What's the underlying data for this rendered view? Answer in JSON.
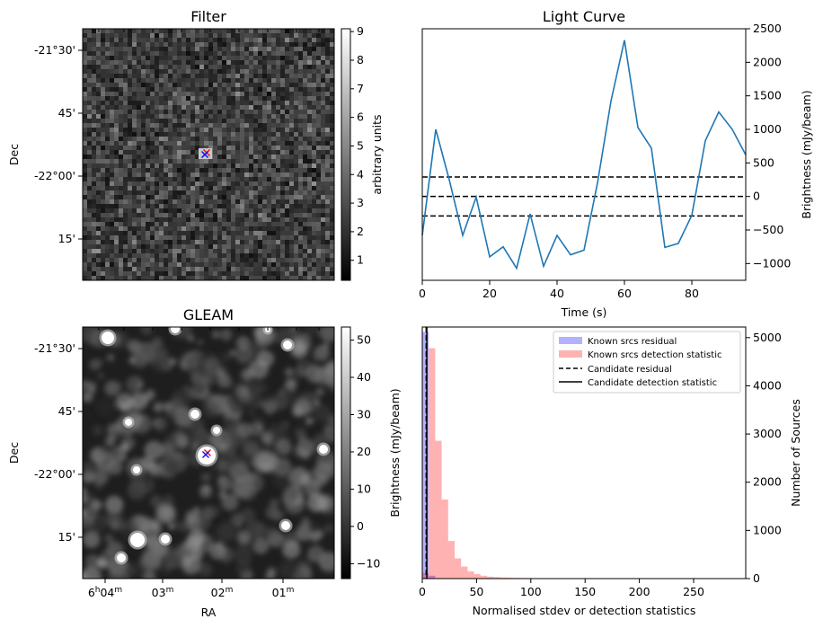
{
  "chart_data": [
    {
      "id": "filter",
      "type": "heatmap",
      "title": "Filter",
      "ylabel": "Dec",
      "dec_ticks": [
        "-21°30'",
        "45'",
        "-22°00'",
        "15'"
      ],
      "colorbar": {
        "label": "arbitrary units",
        "range": [
          0.3,
          9.1
        ],
        "ticks": [
          "1",
          "2",
          "3",
          "4",
          "5",
          "6",
          "7",
          "8",
          "9"
        ],
        "colormap": "gray"
      },
      "markers": [
        {
          "symbol": "x",
          "color": "#ff0000"
        },
        {
          "symbol": "x",
          "color": "#0000ff"
        }
      ]
    },
    {
      "id": "light-curve",
      "type": "line",
      "title": "Light Curve",
      "xlabel": "Time (s)",
      "ylabel": "Brightness (mJy/beam)",
      "xlim": [
        0,
        96
      ],
      "ylim": [
        -1250,
        2500
      ],
      "x_ticks": [
        "0",
        "20",
        "40",
        "60",
        "80"
      ],
      "y_ticks": [
        "−1000",
        "−500",
        "0",
        "500",
        "1000",
        "1500",
        "2000",
        "2500"
      ],
      "line_color": "#1f77b4",
      "x": [
        0,
        4,
        8,
        12,
        16,
        20,
        24,
        28,
        32,
        36,
        40,
        44,
        48,
        52,
        56,
        60,
        64,
        68,
        72,
        76,
        80,
        84,
        88,
        92,
        96
      ],
      "y": [
        -580,
        1000,
        250,
        -580,
        -10,
        -900,
        -750,
        -1070,
        -260,
        -1040,
        -580,
        -870,
        -800,
        200,
        1420,
        2330,
        1030,
        720,
        -760,
        -700,
        -280,
        830,
        1260,
        1000,
        620
      ],
      "hlines": [
        {
          "y": 290,
          "style": "dashed",
          "color": "#000000"
        },
        {
          "y": 0,
          "style": "dashed",
          "color": "#000000"
        },
        {
          "y": -290,
          "style": "dashed",
          "color": "#000000"
        }
      ]
    },
    {
      "id": "gleam",
      "type": "heatmap",
      "title": "GLEAM",
      "xlabel": "RA",
      "ylabel": "Dec",
      "ra_ticks": [
        "6h04m",
        "03m",
        "02m",
        "01m"
      ],
      "dec_ticks": [
        "-21°30'",
        "45'",
        "-22°00'",
        "15'"
      ],
      "colorbar": {
        "label": "Brightness (mJy/beam)",
        "range": [
          -14,
          53.5
        ],
        "ticks": [
          "−10",
          "0",
          "10",
          "20",
          "30",
          "40",
          "50"
        ],
        "colormap": "gray"
      },
      "markers": [
        {
          "symbol": "x",
          "color": "#ff0000"
        },
        {
          "symbol": "x",
          "color": "#0000ff"
        }
      ]
    },
    {
      "id": "histogram",
      "type": "bar",
      "xlabel": "Normalised stdev or detection statistics",
      "ylabel": "Number of Sources",
      "xlim": [
        0,
        298
      ],
      "ylim": [
        0,
        5220
      ],
      "x_ticks": [
        "0",
        "50",
        "100",
        "150",
        "200",
        "250"
      ],
      "y_ticks": [
        "0",
        "1000",
        "2000",
        "3000",
        "4000",
        "5000"
      ],
      "bin_width": 5.96,
      "series": [
        {
          "name": "Known srcs residual",
          "color": "#0000ff",
          "alpha": 0.3,
          "values": [
            5120,
            60,
            10
          ]
        },
        {
          "name": "Known srcs detection statistic",
          "color": "#ff0000",
          "alpha": 0.3,
          "values": [
            120,
            4780,
            2860,
            1640,
            780,
            420,
            250,
            150,
            95,
            60,
            40,
            30,
            22,
            18,
            15,
            12,
            10,
            8,
            7,
            6,
            5,
            5,
            4,
            4,
            3,
            3,
            3,
            2,
            2,
            2,
            2,
            2,
            2,
            1,
            1,
            1,
            1,
            1,
            1,
            1,
            1,
            1,
            1,
            1,
            1,
            1,
            1,
            1,
            1,
            1
          ]
        }
      ],
      "vlines": [
        {
          "name": "Candidate residual",
          "x": 3.6,
          "style": "dashed",
          "color": "#000000"
        },
        {
          "name": "Candidate detection statistic",
          "x": 4.2,
          "style": "solid",
          "color": "#000000"
        }
      ],
      "legend_position": "top-right"
    }
  ]
}
